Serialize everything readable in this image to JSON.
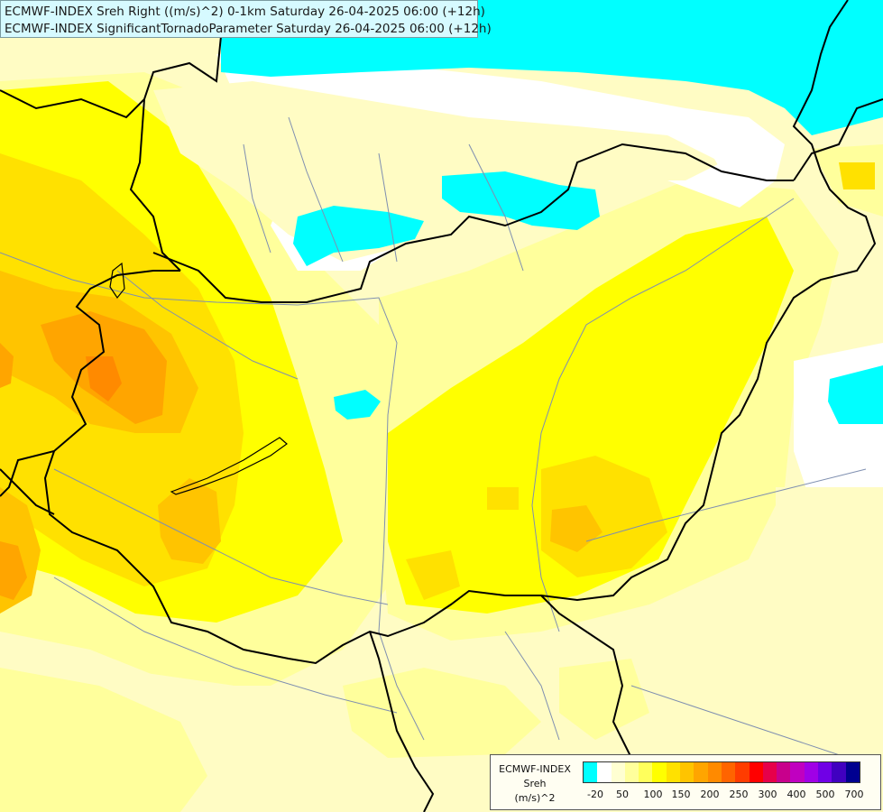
{
  "title": {
    "line1": "ECMWF-INDEX Sreh Right ((m/s)^2) 0-1km Saturday 26-04-2025 06:00 (+12h)",
    "line2": "ECMWF-INDEX SignificantTornadoParameter Saturday 26-04-2025 06:00 (+12h)"
  },
  "legend": {
    "model": "ECMWF-INDEX",
    "variable": "Sreh",
    "unit": "(m/s)^2",
    "colors": [
      "#00ffff",
      "#ffffff",
      "#ffffd2",
      "#ffff9c",
      "#ffff5c",
      "#ffff00",
      "#ffe100",
      "#ffc400",
      "#ffa500",
      "#ff8a00",
      "#ff6400",
      "#ff3c00",
      "#ff0000",
      "#e6004a",
      "#c8008c",
      "#c000c0",
      "#a000e6",
      "#7000e6",
      "#4000c0",
      "#000090"
    ],
    "ticks": [
      "-20",
      "50",
      "100",
      "150",
      "200",
      "250",
      "300",
      "400",
      "500",
      "700"
    ]
  },
  "map_colors": {
    "cyan": "#00ffff",
    "white": "#ffffff",
    "pale": "#fffcc4",
    "light": "#ffff9c",
    "yellow": "#ffff00",
    "gold": "#ffe100",
    "amber": "#ffc400",
    "orange": "#ffa500",
    "dark_orange": "#ff8a00",
    "border": "#000000",
    "river": "#7f8fb0"
  }
}
